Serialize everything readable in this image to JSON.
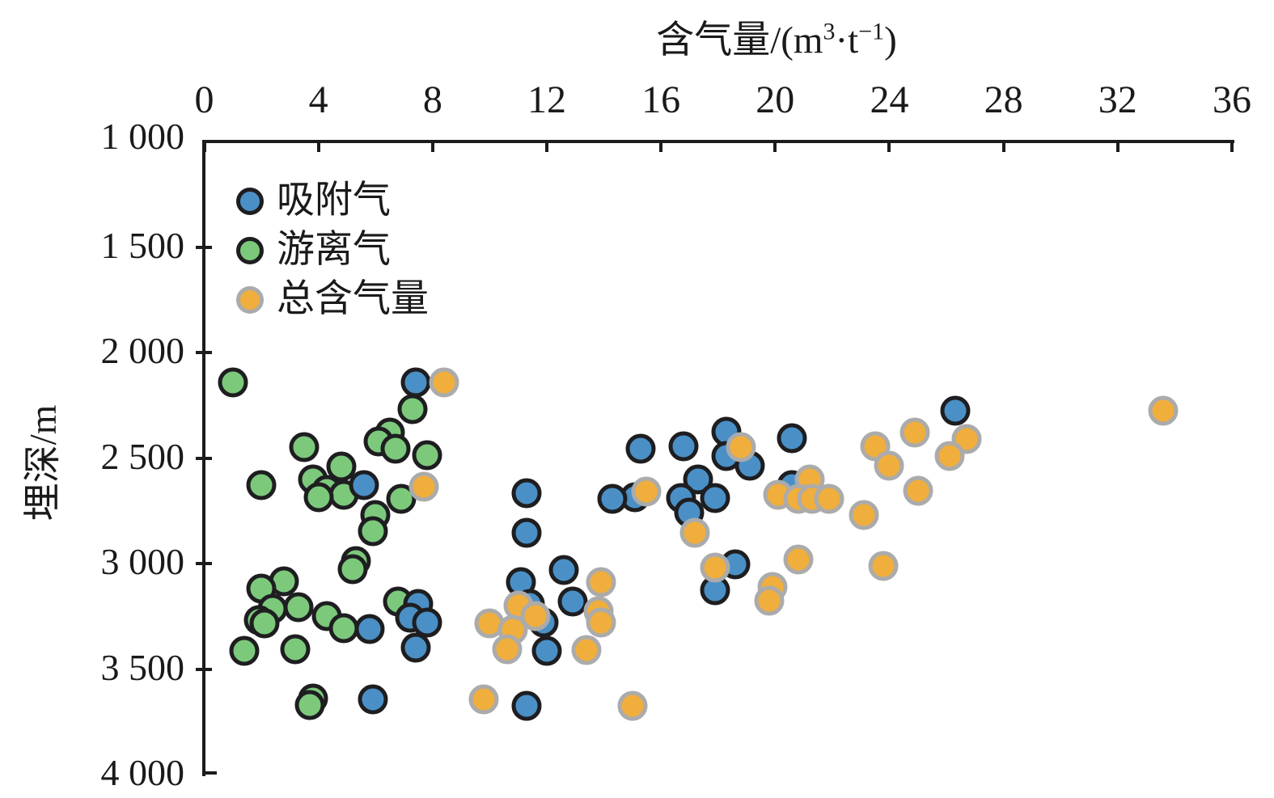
{
  "figure": {
    "x_axis": {
      "title_prefix": "含气量/(m",
      "title_sup1": "3",
      "title_mid": "·t",
      "title_sup2": "−1",
      "title_suffix": ")",
      "tick_labels": [
        "0",
        "4",
        "8",
        "12",
        "16",
        "20",
        "24",
        "28",
        "32",
        "36"
      ],
      "tick_values": [
        0,
        4,
        8,
        12,
        16,
        20,
        24,
        28,
        32,
        36
      ]
    },
    "y_axis": {
      "title": "埋深/m",
      "tick_labels": [
        "1 000",
        "1 500",
        "2 000",
        "2 500",
        "3 000",
        "3 500",
        "4 000"
      ],
      "tick_values": [
        1000,
        1500,
        2000,
        2500,
        3000,
        3500,
        4000
      ]
    },
    "legend": [
      {
        "label": "吸附气",
        "fill": "#4A90C6",
        "stroke": "#1E1E21"
      },
      {
        "label": "游离气",
        "fill": "#7CC97B",
        "stroke": "#1E1E21"
      },
      {
        "label": "总含气量",
        "fill": "#F0AE3C",
        "stroke": "#ABABAB"
      }
    ]
  },
  "chart_data": {
    "type": "scatter",
    "title": "含气量/(m³·t⁻¹)",
    "xlabel": "含气量/(m³·t⁻¹)",
    "ylabel": "埋深/m",
    "xlim": [
      0,
      36
    ],
    "ylim": [
      4000,
      1000
    ],
    "y_axis_inverted": true,
    "grid": false,
    "legend_position": "upper-left-inside",
    "series": [
      {
        "name": "吸附气",
        "fill": "#4A90C6",
        "stroke": "#1E1E21",
        "z": 2,
        "points_x_gas_content_y_depth": [
          [
            7.4,
            2140
          ],
          [
            5.6,
            2630
          ],
          [
            15.3,
            2455
          ],
          [
            16.8,
            2445
          ],
          [
            18.3,
            2375
          ],
          [
            20.6,
            2405
          ],
          [
            26.3,
            2275
          ],
          [
            18.3,
            2490
          ],
          [
            19.1,
            2535
          ],
          [
            17.3,
            2600
          ],
          [
            20.6,
            2630
          ],
          [
            11.3,
            2665
          ],
          [
            15.1,
            2685
          ],
          [
            17.9,
            2690
          ],
          [
            16.7,
            2690
          ],
          [
            14.3,
            2695
          ],
          [
            17.0,
            2760
          ],
          [
            11.3,
            2855
          ],
          [
            18.6,
            3005
          ],
          [
            12.6,
            3030
          ],
          [
            11.1,
            3090
          ],
          [
            17.9,
            3125
          ],
          [
            12.9,
            3180
          ],
          [
            11.4,
            3190
          ],
          [
            7.5,
            3190
          ],
          [
            7.2,
            3255
          ],
          [
            7.8,
            3280
          ],
          [
            11.9,
            3280
          ],
          [
            5.8,
            3310
          ],
          [
            7.4,
            3400
          ],
          [
            12.0,
            3415
          ],
          [
            5.9,
            3645
          ],
          [
            11.3,
            3675
          ]
        ]
      },
      {
        "name": "游离气",
        "fill": "#7CC97B",
        "stroke": "#1E1E21",
        "z": 1,
        "points_x_gas_content_y_depth": [
          [
            1.0,
            2140
          ],
          [
            7.3,
            2270
          ],
          [
            6.5,
            2380
          ],
          [
            6.1,
            2420
          ],
          [
            3.5,
            2450
          ],
          [
            6.7,
            2455
          ],
          [
            7.8,
            2485
          ],
          [
            4.8,
            2540
          ],
          [
            3.8,
            2600
          ],
          [
            2.0,
            2630
          ],
          [
            4.3,
            2650
          ],
          [
            4.9,
            2675
          ],
          [
            4.0,
            2685
          ],
          [
            6.9,
            2695
          ],
          [
            6.0,
            2770
          ],
          [
            5.9,
            2845
          ],
          [
            5.3,
            2990
          ],
          [
            5.2,
            3025
          ],
          [
            2.8,
            3085
          ],
          [
            2.0,
            3120
          ],
          [
            6.8,
            3180
          ],
          [
            3.3,
            3205
          ],
          [
            2.4,
            3215
          ],
          [
            4.3,
            3250
          ],
          [
            1.9,
            3270
          ],
          [
            2.1,
            3285
          ],
          [
            4.9,
            3305
          ],
          [
            3.2,
            3405
          ],
          [
            1.4,
            3415
          ],
          [
            3.8,
            3640
          ],
          [
            3.7,
            3670
          ]
        ]
      },
      {
        "name": "总含气量",
        "fill": "#F0AE3C",
        "stroke": "#ABABAB",
        "z": 3,
        "points_x_gas_content_y_depth": [
          [
            8.4,
            2140
          ],
          [
            33.6,
            2275
          ],
          [
            24.9,
            2380
          ],
          [
            26.7,
            2410
          ],
          [
            23.5,
            2445
          ],
          [
            18.8,
            2450
          ],
          [
            26.1,
            2490
          ],
          [
            24.0,
            2535
          ],
          [
            21.2,
            2600
          ],
          [
            7.7,
            2635
          ],
          [
            25.0,
            2655
          ],
          [
            15.5,
            2660
          ],
          [
            20.1,
            2675
          ],
          [
            20.8,
            2695
          ],
          [
            21.3,
            2695
          ],
          [
            21.9,
            2695
          ],
          [
            23.1,
            2770
          ],
          [
            17.2,
            2855
          ],
          [
            20.8,
            2980
          ],
          [
            23.8,
            3010
          ],
          [
            17.9,
            3020
          ],
          [
            13.9,
            3090
          ],
          [
            19.9,
            3110
          ],
          [
            19.8,
            3175
          ],
          [
            11.0,
            3200
          ],
          [
            13.8,
            3225
          ],
          [
            11.6,
            3250
          ],
          [
            13.9,
            3280
          ],
          [
            10.0,
            3285
          ],
          [
            10.8,
            3315
          ],
          [
            10.6,
            3405
          ],
          [
            13.4,
            3410
          ],
          [
            9.8,
            3645
          ],
          [
            15.0,
            3675
          ]
        ]
      }
    ]
  }
}
